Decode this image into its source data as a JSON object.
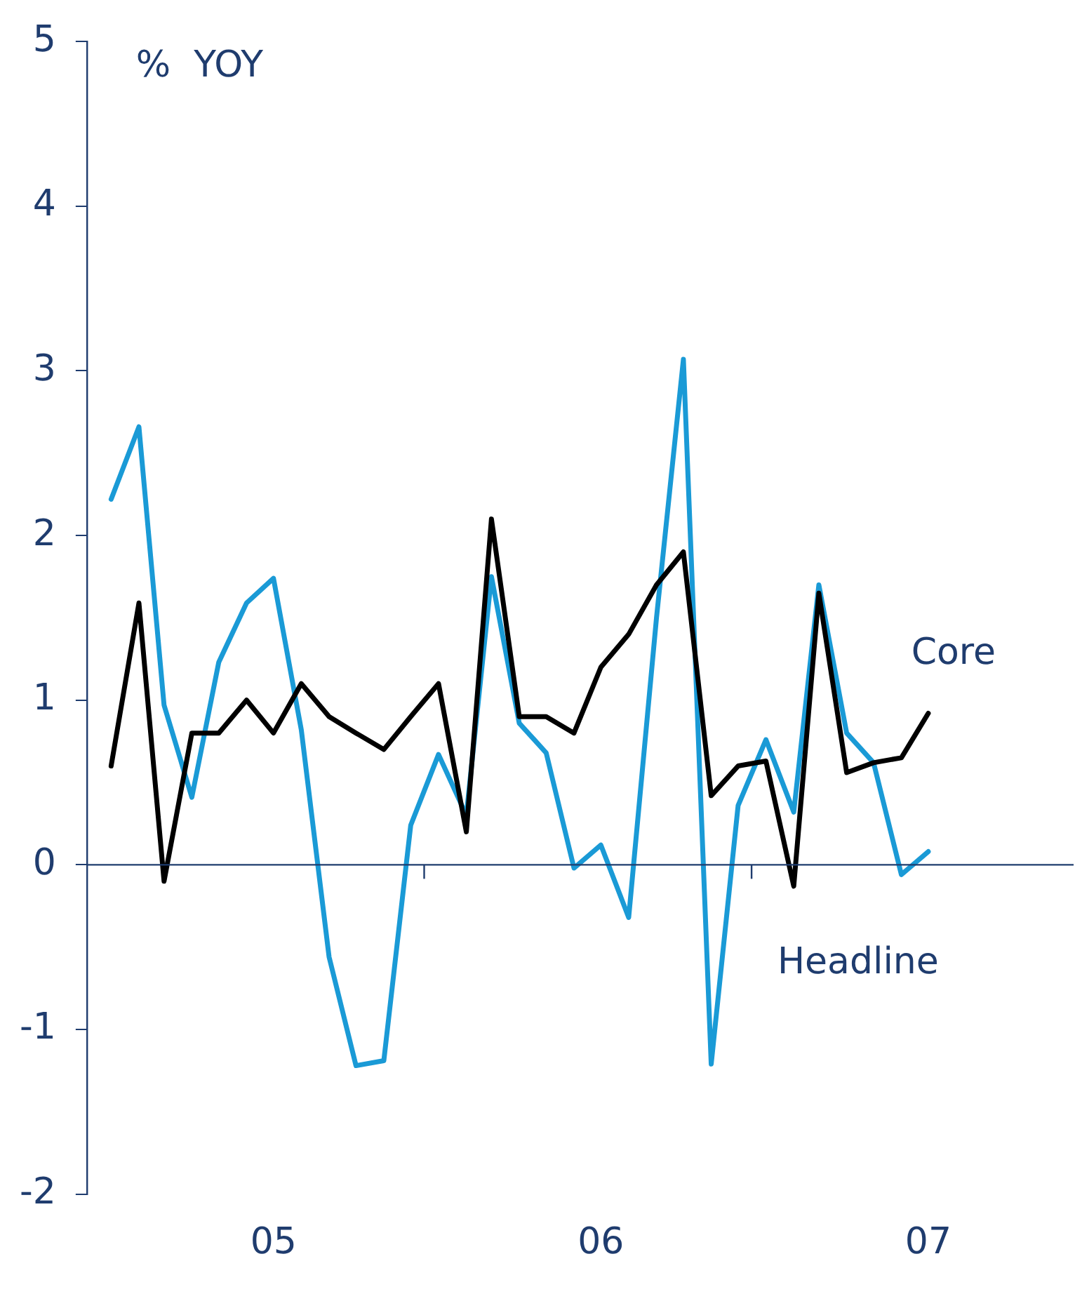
{
  "chart_data": {
    "type": "line",
    "ylabel": "%  YOY",
    "x": [
      "2005-01",
      "2005-02",
      "2005-03",
      "2005-04",
      "2005-05",
      "2005-06",
      "2005-07",
      "2005-08",
      "2005-09",
      "2005-10",
      "2005-11",
      "2005-12",
      "2006-01",
      "2006-02",
      "2006-03",
      "2006-04",
      "2006-05",
      "2006-06",
      "2006-07",
      "2006-08",
      "2006-09",
      "2006-10",
      "2006-11",
      "2006-12",
      "2007-01",
      "2007-02",
      "2007-03",
      "2007-04",
      "2007-05",
      "2007-06",
      "2007-07"
    ],
    "series": [
      {
        "name": "Headline",
        "color": "#1a9ad6",
        "values": [
          2.22,
          2.66,
          0.97,
          0.41,
          1.23,
          1.59,
          1.74,
          0.82,
          -0.56,
          -1.22,
          -1.19,
          0.24,
          0.67,
          0.3,
          1.75,
          0.86,
          0.68,
          -0.02,
          0.12,
          -0.32,
          1.5,
          3.07,
          -1.21,
          0.36,
          0.76,
          0.32,
          1.7,
          0.8,
          0.62,
          -0.06,
          0.08
        ]
      },
      {
        "name": "Core",
        "color": "#000000",
        "values": [
          0.6,
          1.59,
          -0.1,
          0.8,
          0.8,
          1.0,
          0.8,
          1.1,
          0.9,
          0.8,
          0.7,
          0.9,
          1.1,
          0.2,
          2.1,
          0.9,
          0.9,
          0.8,
          1.2,
          1.4,
          1.7,
          1.9,
          0.42,
          0.6,
          0.63,
          -0.13,
          1.65,
          0.56,
          0.62,
          0.65,
          0.92
        ]
      }
    ],
    "xlim": [
      "2004-12-05",
      "2007-12-10"
    ],
    "xticks": [
      {
        "value": "2005-07-01",
        "label": "05"
      },
      {
        "value": "2005-12-16",
        "label": null
      },
      {
        "value": "2006-07-01",
        "label": "06"
      },
      {
        "value": "2006-12-16",
        "label": null
      },
      {
        "value": "2007-07-01",
        "label": "07"
      }
    ],
    "ylim": [
      -2,
      5
    ],
    "yticks": [
      -2,
      -1,
      0,
      1,
      2,
      3,
      4,
      5
    ],
    "ref_lines": [
      {
        "axis": "y",
        "value": 0,
        "color": "#1f3c6e"
      }
    ],
    "grid": false,
    "legend": false,
    "marker": "none",
    "line_style": "solid"
  }
}
